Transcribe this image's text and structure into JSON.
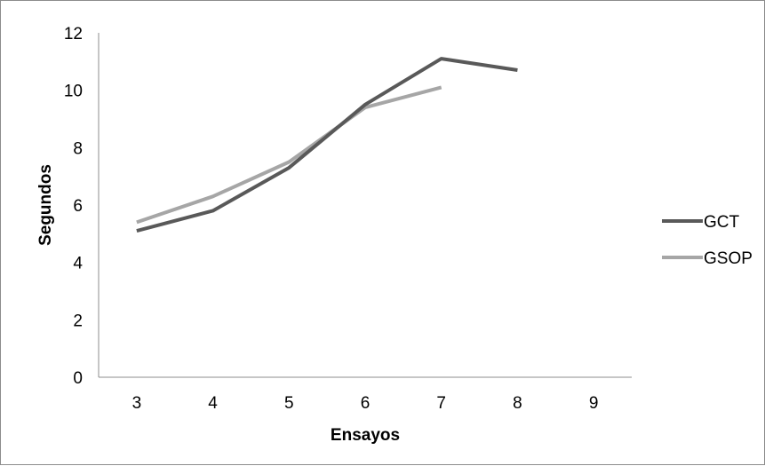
{
  "chart_data": {
    "type": "line",
    "title": "",
    "xlabel": "Ensayos",
    "ylabel": "Segundos",
    "categories": [
      "3",
      "4",
      "5",
      "6",
      "7",
      "8",
      "9"
    ],
    "ylim": [
      0,
      12
    ],
    "yticks": [
      0,
      2,
      4,
      6,
      8,
      10,
      12
    ],
    "grid": false,
    "legend_position": "right",
    "series": [
      {
        "name": "GCT",
        "color": "#595959",
        "values": [
          5.1,
          5.8,
          7.3,
          9.5,
          11.1,
          10.7,
          null
        ]
      },
      {
        "name": "GSOP",
        "color": "#a6a6a6",
        "values": [
          5.4,
          6.3,
          7.5,
          9.4,
          10.1,
          null,
          null
        ]
      }
    ]
  }
}
